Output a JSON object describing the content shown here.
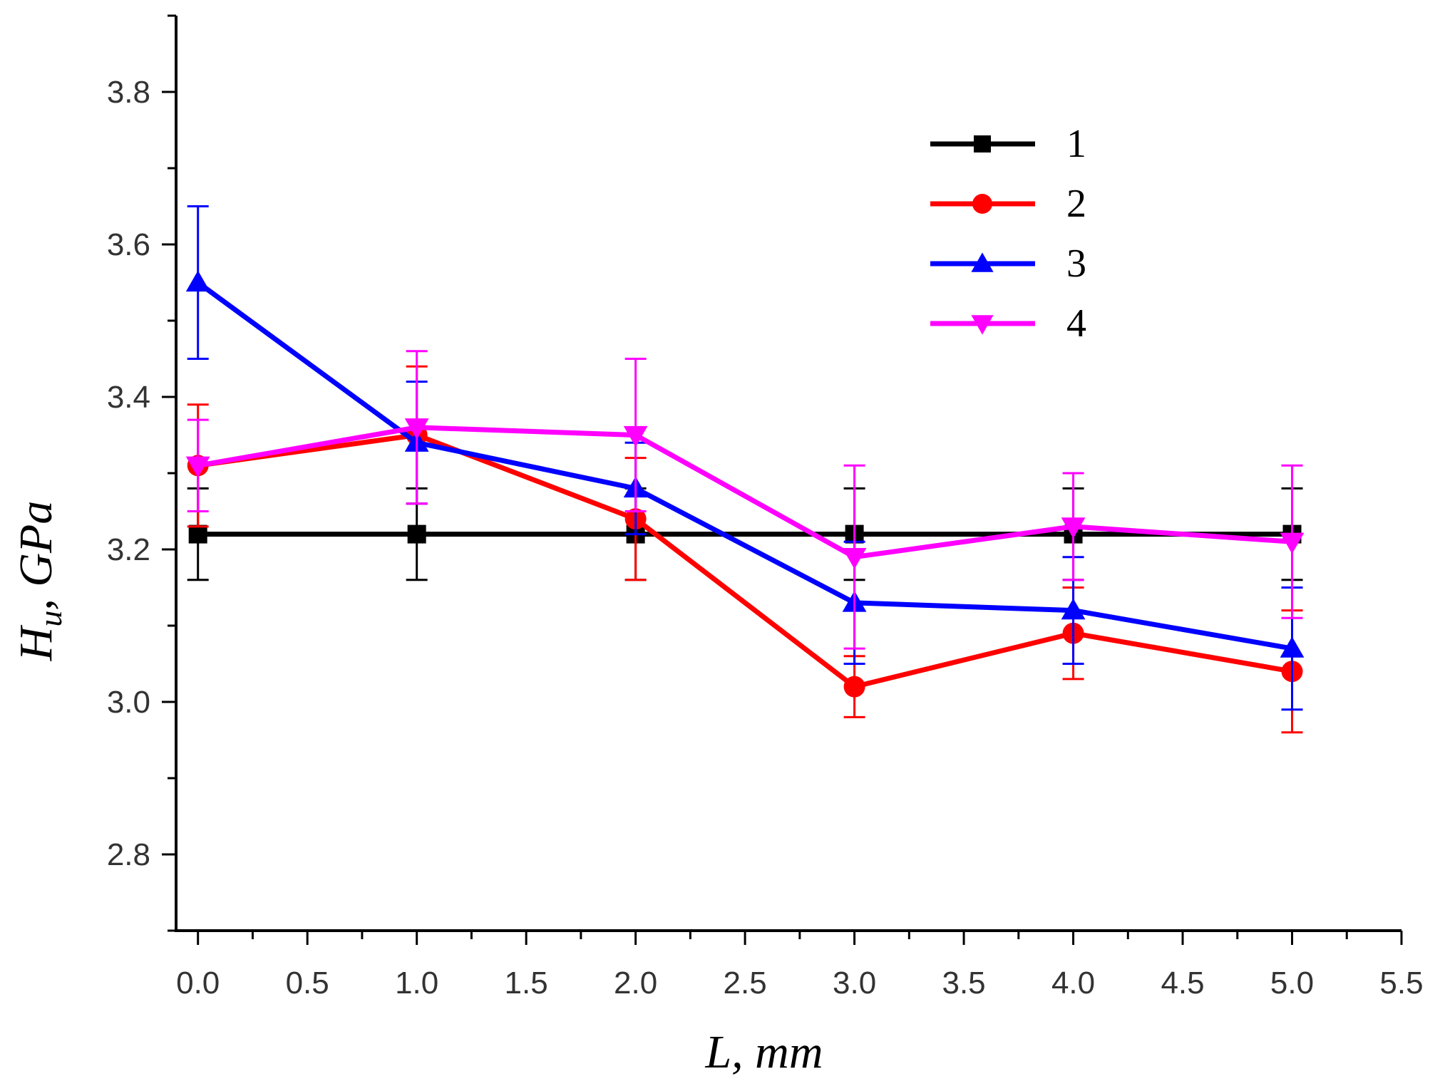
{
  "chart_data": {
    "type": "line",
    "title": "",
    "xlabel": "L, mm",
    "ylabel_main": "H",
    "ylabel_sub": "u",
    "ylabel_rest": ", GPa",
    "xlim": [
      -0.1,
      5.5
    ],
    "ylim": [
      2.7,
      3.9
    ],
    "xticks": [
      0.0,
      0.5,
      1.0,
      1.5,
      2.0,
      2.5,
      3.0,
      3.5,
      4.0,
      4.5,
      5.0,
      5.5
    ],
    "xtick_labels": [
      "0.0",
      "0.5",
      "1.0",
      "1.5",
      "2.0",
      "2.5",
      "3.0",
      "3.5",
      "4.0",
      "4.5",
      "5.0",
      "5.5"
    ],
    "yticks": [
      2.8,
      3.0,
      3.2,
      3.4,
      3.6,
      3.8
    ],
    "ytick_labels": [
      "2.8",
      "3.0",
      "3.2",
      "3.4",
      "3.6",
      "3.8"
    ],
    "grid": false,
    "legend_position": "top-right",
    "x": [
      0,
      1,
      2,
      3,
      4,
      5
    ],
    "series": [
      {
        "name": "1",
        "color": "#000000",
        "marker": "square",
        "values": [
          3.22,
          3.22,
          3.22,
          3.22,
          3.22,
          3.22
        ],
        "error": [
          0.06,
          0.06,
          0.06,
          0.06,
          0.06,
          0.06
        ]
      },
      {
        "name": "2",
        "color": "#ff0000",
        "marker": "circle",
        "values": [
          3.31,
          3.35,
          3.24,
          3.02,
          3.09,
          3.04
        ],
        "error": [
          0.08,
          0.09,
          0.08,
          0.04,
          0.06,
          0.08
        ]
      },
      {
        "name": "3",
        "color": "#0000ff",
        "marker": "triangle-up",
        "values": [
          3.55,
          3.34,
          3.28,
          3.13,
          3.12,
          3.07
        ],
        "error": [
          0.1,
          0.08,
          0.06,
          0.08,
          0.07,
          0.08
        ]
      },
      {
        "name": "4",
        "color": "#ff00ff",
        "marker": "triangle-down",
        "values": [
          3.31,
          3.36,
          3.35,
          3.19,
          3.23,
          3.21
        ],
        "error": [
          0.06,
          0.1,
          0.1,
          0.12,
          0.07,
          0.1
        ]
      }
    ]
  }
}
